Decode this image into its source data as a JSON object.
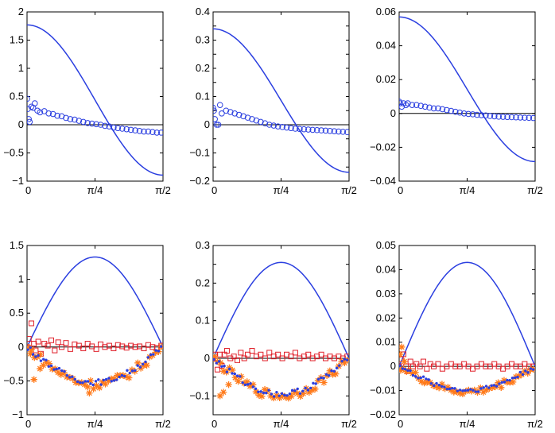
{
  "figure": {
    "layout": "2x3 grid of subplots",
    "colors": {
      "curve": "#2b3fe0",
      "circles": "#2b3fe0",
      "squares": "#e0202a",
      "stars": "#ff7a1a",
      "dots": "#2b3fe0",
      "zero_line": "#000000"
    }
  },
  "chart_data": [
    {
      "type": "line",
      "title": "",
      "xlabel": "",
      "ylabel": "",
      "xlim": [
        0,
        1.5708
      ],
      "ylim": [
        -1,
        2
      ],
      "xticks": [
        "0",
        "π/4",
        "π/2"
      ],
      "yticks": [
        "−1",
        "−0.5",
        "0",
        "0.5",
        "1",
        "1.5",
        "2"
      ],
      "series": [
        {
          "name": "analytic curve",
          "kind": "line",
          "amp": 1.77,
          "shift": 0.44,
          "func": "cos2"
        },
        {
          "name": "samples",
          "kind": "circles",
          "x": [
            0.0,
            0.01,
            0.02,
            0.03,
            0.05,
            0.07,
            0.09,
            0.12,
            0.15,
            0.2,
            0.25,
            0.3,
            0.35,
            0.4,
            0.45,
            0.5,
            0.55,
            0.6,
            0.65,
            0.7,
            0.75,
            0.8,
            0.85,
            0.9,
            0.95,
            1.0,
            1.05,
            1.1,
            1.15,
            1.2,
            1.25,
            1.3,
            1.35,
            1.4,
            1.45,
            1.5,
            1.55
          ],
          "y": [
            0.46,
            0.28,
            0.1,
            0.05,
            0.32,
            0.3,
            0.38,
            0.25,
            0.22,
            0.24,
            0.2,
            0.19,
            0.16,
            0.15,
            0.12,
            0.1,
            0.09,
            0.07,
            0.05,
            0.03,
            0.02,
            0.01,
            0.0,
            -0.02,
            -0.03,
            -0.05,
            -0.06,
            -0.07,
            -0.08,
            -0.09,
            -0.1,
            -0.11,
            -0.12,
            -0.12,
            -0.13,
            -0.14,
            -0.14
          ]
        }
      ]
    },
    {
      "type": "line",
      "title": "",
      "xlabel": "",
      "ylabel": "",
      "xlim": [
        0,
        1.5708
      ],
      "ylim": [
        -0.2,
        0.4
      ],
      "xticks": [
        "0",
        "π/4",
        "π/2"
      ],
      "yticks": [
        "−0.2",
        "−0.15",
        "−0.1",
        "−0.05",
        "0",
        "0.05",
        "0.1",
        "0.15",
        "0.2",
        "0.25",
        "0.3",
        "0.35",
        "0.4"
      ],
      "ytick_labels_shown": [
        "−0.2",
        "−0.1",
        "0",
        "0.1",
        "0.2",
        "0.3",
        "0.4"
      ],
      "series": [
        {
          "name": "analytic curve",
          "kind": "line",
          "amp": 0.34,
          "shift": 0.083,
          "func": "cos2"
        },
        {
          "name": "samples",
          "kind": "circles",
          "x": [
            0.0,
            0.01,
            0.02,
            0.04,
            0.06,
            0.08,
            0.1,
            0.15,
            0.2,
            0.25,
            0.3,
            0.35,
            0.4,
            0.45,
            0.5,
            0.55,
            0.6,
            0.65,
            0.7,
            0.75,
            0.8,
            0.85,
            0.9,
            0.95,
            1.0,
            1.05,
            1.1,
            1.15,
            1.2,
            1.25,
            1.3,
            1.35,
            1.4,
            1.45,
            1.5,
            1.55
          ],
          "y": [
            0.06,
            0.05,
            0.02,
            0.0,
            0.0,
            0.07,
            0.04,
            0.05,
            0.045,
            0.04,
            0.035,
            0.03,
            0.025,
            0.02,
            0.015,
            0.01,
            0.005,
            0.0,
            -0.003,
            -0.006,
            -0.008,
            -0.01,
            -0.012,
            -0.014,
            -0.015,
            -0.016,
            -0.017,
            -0.018,
            -0.019,
            -0.02,
            -0.021,
            -0.022,
            -0.023,
            -0.024,
            -0.025,
            -0.026
          ]
        }
      ]
    },
    {
      "type": "line",
      "title": "",
      "xlabel": "",
      "ylabel": "",
      "xlim": [
        0,
        1.5708
      ],
      "ylim": [
        -0.04,
        0.06
      ],
      "xticks": [
        "0",
        "π/4",
        "π/2"
      ],
      "yticks": [
        "−0.04",
        "−0.02",
        "0",
        "0.02",
        "0.04",
        "0.06"
      ],
      "series": [
        {
          "name": "analytic curve",
          "kind": "line",
          "amp": 0.057,
          "shift": 0.014,
          "func": "cos2"
        },
        {
          "name": "samples",
          "kind": "circles",
          "x": [
            0.0,
            0.01,
            0.03,
            0.05,
            0.08,
            0.1,
            0.15,
            0.2,
            0.25,
            0.3,
            0.35,
            0.4,
            0.45,
            0.5,
            0.55,
            0.6,
            0.65,
            0.7,
            0.75,
            0.8,
            0.85,
            0.9,
            0.95,
            1.0,
            1.05,
            1.1,
            1.15,
            1.2,
            1.25,
            1.3,
            1.35,
            1.4,
            1.45,
            1.5,
            1.55
          ],
          "y": [
            0.007,
            0.006,
            0.004,
            0.006,
            0.005,
            0.006,
            0.005,
            0.005,
            0.0045,
            0.004,
            0.0035,
            0.003,
            0.003,
            0.0025,
            0.002,
            0.0015,
            0.001,
            0.0005,
            0.0,
            -0.0003,
            -0.0005,
            -0.0008,
            -0.001,
            -0.0012,
            -0.0015,
            -0.0017,
            -0.0019,
            -0.002,
            -0.0021,
            -0.0022,
            -0.0023,
            -0.0024,
            -0.0025,
            -0.0026,
            -0.0027
          ]
        }
      ]
    },
    {
      "type": "line",
      "title": "",
      "xlabel": "",
      "ylabel": "",
      "xlim": [
        0,
        1.5708
      ],
      "ylim": [
        -1,
        1.5
      ],
      "xticks": [
        "0",
        "π/4",
        "π/2"
      ],
      "yticks": [
        "−1",
        "−0.5",
        "0",
        "0.5",
        "1",
        "1.5"
      ],
      "series": [
        {
          "name": "analytic curve",
          "kind": "line",
          "amp": 1.33,
          "func": "sin2"
        },
        {
          "name": "squares",
          "kind": "squares",
          "x": [
            0.0,
            0.02,
            0.05,
            0.08,
            0.1,
            0.13,
            0.16,
            0.2,
            0.24,
            0.28,
            0.32,
            0.36,
            0.4,
            0.45,
            0.5,
            0.55,
            0.6,
            0.65,
            0.7,
            0.75,
            0.8,
            0.85,
            0.9,
            0.95,
            1.0,
            1.05,
            1.1,
            1.15,
            1.2,
            1.25,
            1.3,
            1.35,
            1.4,
            1.45,
            1.5,
            1.55
          ],
          "y": [
            0.0,
            0.12,
            0.35,
            0.05,
            -0.05,
            0.08,
            -0.1,
            0.05,
            0.02,
            0.1,
            -0.05,
            0.07,
            0.0,
            0.06,
            -0.03,
            0.04,
            0.02,
            -0.02,
            0.05,
            0.01,
            -0.03,
            0.04,
            0.0,
            0.02,
            -0.02,
            0.03,
            0.01,
            -0.01,
            0.02,
            0.0,
            0.01,
            -0.02,
            0.03,
            0.0,
            -0.01,
            0.02
          ]
        },
        {
          "name": "stars",
          "kind": "stars",
          "amp": -0.55,
          "noise": 0.07,
          "n": 46,
          "spikes": [
            [
              0.08,
              -0.48
            ],
            [
              0.04,
              -0.1
            ],
            [
              0.15,
              -0.32
            ],
            [
              0.72,
              -0.68
            ]
          ]
        },
        {
          "name": "dots",
          "kind": "dots",
          "amp": -0.52,
          "noise": 0.04,
          "n": 52
        }
      ]
    },
    {
      "type": "line",
      "title": "",
      "xlabel": "",
      "ylabel": "",
      "xlim": [
        0,
        1.5708
      ],
      "ylim": [
        -0.15,
        0.3
      ],
      "xticks": [
        "0",
        "π/4",
        "π/2"
      ],
      "yticks": [
        "−0.15",
        "−0.1",
        "−0.05",
        "0",
        "0.05",
        "0.1",
        "0.15",
        "0.2",
        "0.25",
        "0.3"
      ],
      "ytick_labels_shown": [
        "−0.1",
        "0",
        "0.1",
        "0.2",
        "0.3"
      ],
      "series": [
        {
          "name": "analytic curve",
          "kind": "line",
          "amp": 0.255,
          "func": "sin2"
        },
        {
          "name": "squares",
          "kind": "squares",
          "x": [
            0.0,
            0.02,
            0.05,
            0.08,
            0.1,
            0.13,
            0.16,
            0.2,
            0.24,
            0.28,
            0.32,
            0.36,
            0.4,
            0.45,
            0.5,
            0.55,
            0.6,
            0.65,
            0.7,
            0.75,
            0.8,
            0.85,
            0.9,
            0.95,
            1.0,
            1.05,
            1.1,
            1.15,
            1.2,
            1.25,
            1.3,
            1.35,
            1.4,
            1.45,
            1.5,
            1.55
          ],
          "y": [
            0.0,
            0.01,
            -0.03,
            0.01,
            -0.02,
            0.01,
            0.02,
            0.0,
            0.005,
            -0.005,
            0.015,
            0.0,
            0.01,
            0.02,
            0.005,
            0.01,
            0.0,
            0.015,
            0.005,
            0.01,
            0.0,
            0.01,
            0.005,
            0.015,
            0.0,
            0.005,
            0.01,
            0.0,
            0.005,
            0.01,
            0.0,
            0.005,
            0.0,
            0.005,
            0.0,
            0.005
          ]
        },
        {
          "name": "stars",
          "kind": "stars",
          "amp": -0.1,
          "noise": 0.012,
          "n": 46,
          "spikes": [
            [
              0.08,
              -0.1
            ],
            [
              0.12,
              -0.09
            ],
            [
              0.18,
              -0.07
            ]
          ]
        },
        {
          "name": "dots",
          "kind": "dots",
          "amp": -0.095,
          "noise": 0.008,
          "n": 52
        }
      ]
    },
    {
      "type": "line",
      "title": "",
      "xlabel": "",
      "ylabel": "",
      "xlim": [
        0,
        1.5708
      ],
      "ylim": [
        -0.02,
        0.05
      ],
      "xticks": [
        "0",
        "π/4",
        "π/2"
      ],
      "yticks": [
        "−0.02",
        "−0.01",
        "0",
        "0.01",
        "0.02",
        "0.03",
        "0.04",
        "0.05"
      ],
      "series": [
        {
          "name": "analytic curve",
          "kind": "line",
          "amp": 0.043,
          "func": "sin2"
        },
        {
          "name": "squares",
          "kind": "squares",
          "x": [
            0.0,
            0.02,
            0.05,
            0.08,
            0.1,
            0.13,
            0.16,
            0.2,
            0.24,
            0.28,
            0.32,
            0.36,
            0.4,
            0.45,
            0.5,
            0.55,
            0.6,
            0.65,
            0.7,
            0.75,
            0.8,
            0.85,
            0.9,
            0.95,
            1.0,
            1.05,
            1.1,
            1.15,
            1.2,
            1.25,
            1.3,
            1.35,
            1.4,
            1.45,
            1.5,
            1.55
          ],
          "y": [
            0.0,
            0.003,
            0.005,
            0.0,
            -0.002,
            0.002,
            0.0,
            0.001,
            0.0,
            0.002,
            -0.001,
            0.001,
            0.0,
            0.001,
            -0.001,
            0.0,
            0.001,
            0.0,
            0.0,
            0.001,
            0.0,
            -0.001,
            0.0,
            0.001,
            0.0,
            0.0,
            0.001,
            0.0,
            -0.001,
            0.0,
            0.001,
            0.0,
            0.0,
            0.001,
            0.0,
            0.0
          ]
        },
        {
          "name": "stars",
          "kind": "stars",
          "amp": -0.0105,
          "noise": 0.0015,
          "n": 46,
          "spikes": [
            [
              0.03,
              0.008
            ],
            [
              0.01,
              0.005
            ],
            [
              0.06,
              0.002
            ]
          ]
        },
        {
          "name": "dots",
          "kind": "dots",
          "amp": -0.0098,
          "noise": 0.001,
          "n": 52
        }
      ]
    }
  ]
}
